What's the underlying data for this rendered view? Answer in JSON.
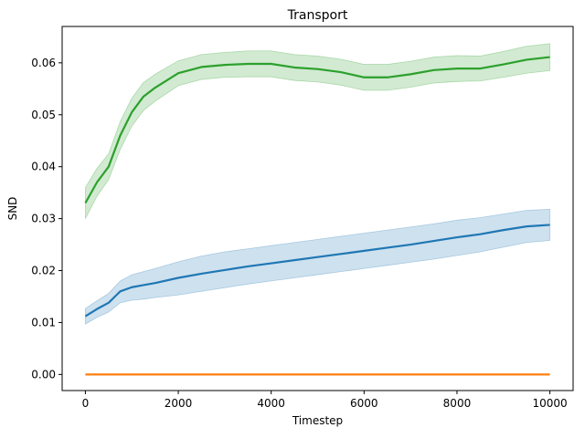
{
  "chart_data": {
    "type": "line",
    "title": "Transport",
    "xlabel": "Timestep",
    "ylabel": "SND",
    "xlim": [
      -500,
      10500
    ],
    "ylim": [
      -0.0031,
      0.067
    ],
    "xticks": [
      0,
      2000,
      4000,
      6000,
      8000,
      10000
    ],
    "xtick_labels": [
      "0",
      "2000",
      "4000",
      "6000",
      "8000",
      "10000"
    ],
    "yticks": [
      0.0,
      0.01,
      0.02,
      0.03,
      0.04,
      0.05,
      0.06
    ],
    "ytick_labels": [
      "0.00",
      "0.01",
      "0.02",
      "0.03",
      "0.04",
      "0.05",
      "0.06"
    ],
    "grid": false,
    "x": [
      0,
      250,
      500,
      750,
      1000,
      1250,
      1500,
      2000,
      2500,
      3000,
      3500,
      4000,
      4500,
      5000,
      5500,
      6000,
      6500,
      7000,
      7500,
      8000,
      8500,
      9000,
      9500,
      10000
    ],
    "series": [
      {
        "color": "#1f77b4",
        "values": [
          0.0112,
          0.0126,
          0.0138,
          0.016,
          0.0168,
          0.0172,
          0.0176,
          0.0186,
          0.0194,
          0.0201,
          0.0208,
          0.0214,
          0.022,
          0.0226,
          0.0232,
          0.0238,
          0.0244,
          0.025,
          0.0257,
          0.0264,
          0.027,
          0.0278,
          0.0285,
          0.0288
        ],
        "lower": [
          0.0097,
          0.011,
          0.012,
          0.0138,
          0.0143,
          0.0145,
          0.0148,
          0.0153,
          0.016,
          0.0167,
          0.0174,
          0.018,
          0.0186,
          0.0192,
          0.0198,
          0.0204,
          0.021,
          0.0216,
          0.0222,
          0.0229,
          0.0236,
          0.0245,
          0.0254,
          0.0258
        ],
        "upper": [
          0.0127,
          0.0142,
          0.0156,
          0.018,
          0.0192,
          0.0198,
          0.0204,
          0.0217,
          0.0228,
          0.0236,
          0.0242,
          0.0248,
          0.0254,
          0.026,
          0.0266,
          0.0272,
          0.0278,
          0.0284,
          0.029,
          0.0297,
          0.0302,
          0.0309,
          0.0316,
          0.0318
        ]
      },
      {
        "color": "#ff7f0e",
        "values": [
          0,
          0,
          0,
          0,
          0,
          0,
          0,
          0,
          0,
          0,
          0,
          0,
          0,
          0,
          0,
          0,
          0,
          0,
          0,
          0,
          0,
          0,
          0,
          0
        ],
        "lower": [
          0,
          0,
          0,
          0,
          0,
          0,
          0,
          0,
          0,
          0,
          0,
          0,
          0,
          0,
          0,
          0,
          0,
          0,
          0,
          0,
          0,
          0,
          0,
          0
        ],
        "upper": [
          0,
          0,
          0,
          0,
          0,
          0,
          0,
          0,
          0,
          0,
          0,
          0,
          0,
          0,
          0,
          0,
          0,
          0,
          0,
          0,
          0,
          0,
          0,
          0
        ]
      },
      {
        "color": "#2ca02c",
        "values": [
          0.033,
          0.037,
          0.04,
          0.046,
          0.0505,
          0.0535,
          0.0552,
          0.058,
          0.0592,
          0.0596,
          0.0598,
          0.0598,
          0.0591,
          0.0588,
          0.0582,
          0.0572,
          0.0572,
          0.0578,
          0.0586,
          0.0589,
          0.0589,
          0.0597,
          0.0606,
          0.0611
        ],
        "lower": [
          0.03,
          0.0343,
          0.0375,
          0.0433,
          0.0478,
          0.0508,
          0.0526,
          0.0556,
          0.0568,
          0.0572,
          0.0573,
          0.0573,
          0.0566,
          0.0563,
          0.0557,
          0.0547,
          0.0547,
          0.0553,
          0.0561,
          0.0564,
          0.0565,
          0.0572,
          0.058,
          0.0585
        ],
        "upper": [
          0.036,
          0.0397,
          0.0425,
          0.0487,
          0.0532,
          0.0562,
          0.0578,
          0.0604,
          0.0616,
          0.062,
          0.0623,
          0.0623,
          0.0616,
          0.0613,
          0.0607,
          0.0597,
          0.0597,
          0.0603,
          0.0611,
          0.0614,
          0.0613,
          0.0622,
          0.0632,
          0.0637
        ]
      }
    ]
  }
}
